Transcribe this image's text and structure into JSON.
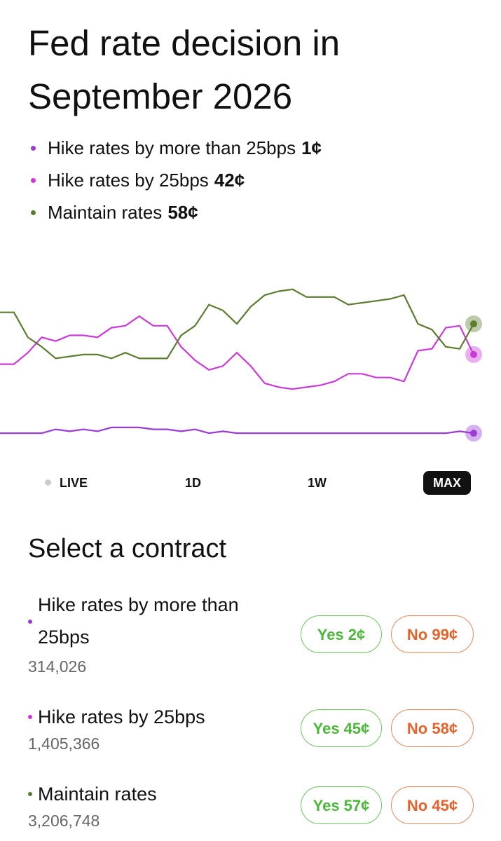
{
  "header": {
    "title": "Fed rate decision in September 2026"
  },
  "chart_data": {
    "type": "line",
    "ylim": [
      -7,
      88
    ],
    "series": [
      {
        "name": "Hike rates by more than 25bps",
        "color": "#9b3ad6",
        "last_label": "1¢",
        "values": [
          1,
          1,
          1,
          1,
          3,
          2,
          3,
          2,
          4,
          4,
          4,
          3,
          3,
          2,
          3,
          1,
          2,
          1,
          1,
          1,
          1,
          1,
          1,
          1,
          1,
          1,
          1,
          1,
          1,
          1,
          1,
          1,
          1,
          2,
          1
        ]
      },
      {
        "name": "Hike rates by 25bps",
        "color": "#c93ad8",
        "last_label": "42¢",
        "values": [
          37,
          37,
          43,
          51,
          49,
          52,
          52,
          51,
          56,
          57,
          62,
          57,
          57,
          46,
          39,
          34,
          36,
          43,
          36,
          27,
          25,
          24,
          25,
          26,
          28,
          32,
          32,
          30,
          30,
          28,
          44,
          45,
          56,
          57,
          42
        ]
      },
      {
        "name": "Maintain rates",
        "color": "#5a7d2e",
        "last_label": "58¢",
        "values": [
          64,
          64,
          51,
          46,
          40,
          41,
          42,
          42,
          40,
          43,
          40,
          40,
          40,
          52,
          57,
          68,
          65,
          58,
          67,
          73,
          75,
          76,
          72,
          72,
          72,
          68,
          69,
          70,
          71,
          73,
          58,
          55,
          46,
          45,
          58
        ]
      }
    ]
  },
  "ranges": {
    "options": [
      "LIVE",
      "1D",
      "1W",
      "MAX"
    ],
    "selected": 3
  },
  "contracts": {
    "title": "Select a contract",
    "items": [
      {
        "volume": "314,026",
        "yes": "Yes 2¢",
        "no": "No 99¢"
      },
      {
        "volume": "1,405,366",
        "yes": "Yes 45¢",
        "no": "No 58¢"
      },
      {
        "volume": "3,206,748",
        "yes": "Yes 57¢",
        "no": "No 45¢"
      }
    ]
  }
}
